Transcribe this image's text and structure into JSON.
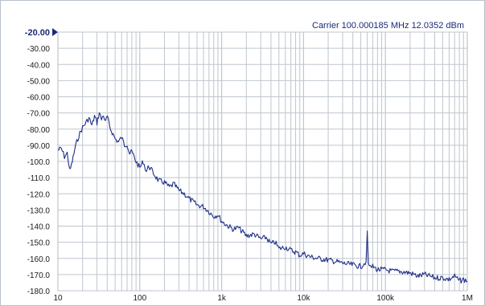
{
  "header": {
    "carrier_text": "Carrier 100.000185 MHz",
    "power_text": "12.0352 dBm"
  },
  "colors": {
    "trace": "#1f2f88",
    "grid": "#bfc6cf",
    "text": "#1a1a1a",
    "header": "#1c2a78",
    "marker": "#1c2a78"
  },
  "chart_data": {
    "type": "line",
    "title": "",
    "xlabel": "",
    "ylabel": "",
    "x_scale": "log",
    "xlim": [
      10,
      1000000
    ],
    "ylim": [
      -180,
      -20
    ],
    "grid": true,
    "x_ticks": [
      {
        "value": 10,
        "label": "10"
      },
      {
        "value": 100,
        "label": "100"
      },
      {
        "value": 1000,
        "label": "1k"
      },
      {
        "value": 10000,
        "label": "10k"
      },
      {
        "value": 100000,
        "label": "100k"
      },
      {
        "value": 1000000,
        "label": "1M"
      }
    ],
    "y_ticks": [
      {
        "value": -20,
        "label": "-20.00"
      },
      {
        "value": -30,
        "label": "-30.00"
      },
      {
        "value": -40,
        "label": "-40.00"
      },
      {
        "value": -50,
        "label": "-50.00"
      },
      {
        "value": -60,
        "label": "-60.00"
      },
      {
        "value": -70,
        "label": "-70.00"
      },
      {
        "value": -80,
        "label": "-80.00"
      },
      {
        "value": -90,
        "label": "-90.00"
      },
      {
        "value": -100,
        "label": "-100.0"
      },
      {
        "value": -110,
        "label": "-110.0"
      },
      {
        "value": -120,
        "label": "-120.0"
      },
      {
        "value": -130,
        "label": "-130.0"
      },
      {
        "value": -140,
        "label": "-140.0"
      },
      {
        "value": -150,
        "label": "-150.0"
      },
      {
        "value": -160,
        "label": "-160.0"
      },
      {
        "value": -170,
        "label": "-170.0"
      },
      {
        "value": -180,
        "label": "-180.0"
      }
    ],
    "reference_level": -20,
    "series": [
      {
        "x": [
          10,
          11,
          12,
          13,
          14,
          15,
          16,
          17,
          18,
          20,
          22,
          24,
          26,
          28,
          30,
          32,
          34,
          36,
          38,
          40,
          43,
          46,
          50,
          55,
          60,
          65,
          70,
          75,
          80,
          90,
          100,
          110,
          120,
          130,
          150,
          170,
          200,
          230,
          260,
          300,
          350,
          400,
          450,
          500,
          600,
          700,
          800,
          900,
          1000,
          1200,
          1400,
          1600,
          2000,
          2500,
          3000,
          3500,
          4000,
          4500,
          5000,
          6000,
          7000,
          8000,
          9000,
          10000,
          12000,
          15000,
          20000,
          25000,
          30000,
          40000,
          50000,
          55000,
          58000,
          60000,
          62000,
          65000,
          70000,
          80000,
          100000,
          120000,
          150000,
          200000,
          250000,
          300000,
          350000,
          400000,
          500000,
          600000,
          700000,
          800000,
          900000,
          1000000
        ],
        "y": [
          -93,
          -92,
          -97,
          -95,
          -106,
          -100,
          -93,
          -88,
          -84,
          -79,
          -76,
          -73,
          -78,
          -72,
          -76,
          -70,
          -74,
          -71,
          -76,
          -72,
          -79,
          -82,
          -86,
          -88,
          -85,
          -90,
          -89,
          -95,
          -94,
          -100,
          -104,
          -100,
          -106,
          -103,
          -108,
          -112,
          -113,
          -116,
          -114,
          -118,
          -120,
          -123,
          -125,
          -127,
          -128,
          -131,
          -134,
          -133,
          -137,
          -140,
          -142,
          -141,
          -146,
          -145,
          -148,
          -147,
          -151,
          -150,
          -154,
          -153,
          -155,
          -156,
          -158,
          -157,
          -159,
          -160,
          -161,
          -162,
          -163,
          -164,
          -165,
          -163,
          -162,
          -143,
          -163,
          -166,
          -165,
          -167,
          -167,
          -168,
          -168,
          -169,
          -171,
          -170,
          -171,
          -172,
          -172,
          -173,
          -171,
          -174,
          -173,
          -174
        ]
      }
    ]
  }
}
